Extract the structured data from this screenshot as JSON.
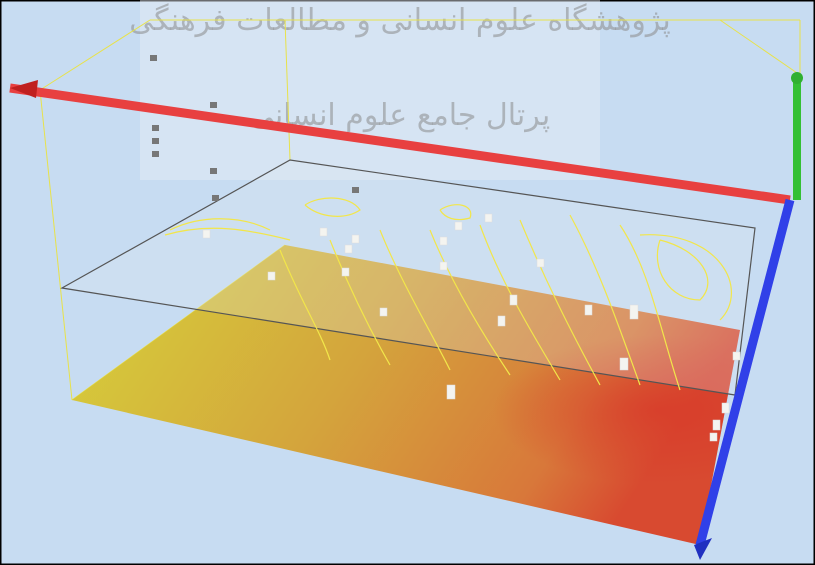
{
  "watermark": {
    "line1": "پژوهشگاه علوم انسانی و مطالعات فرهنگی",
    "line2": "پرتال جامع علوم انسانی"
  }
}
